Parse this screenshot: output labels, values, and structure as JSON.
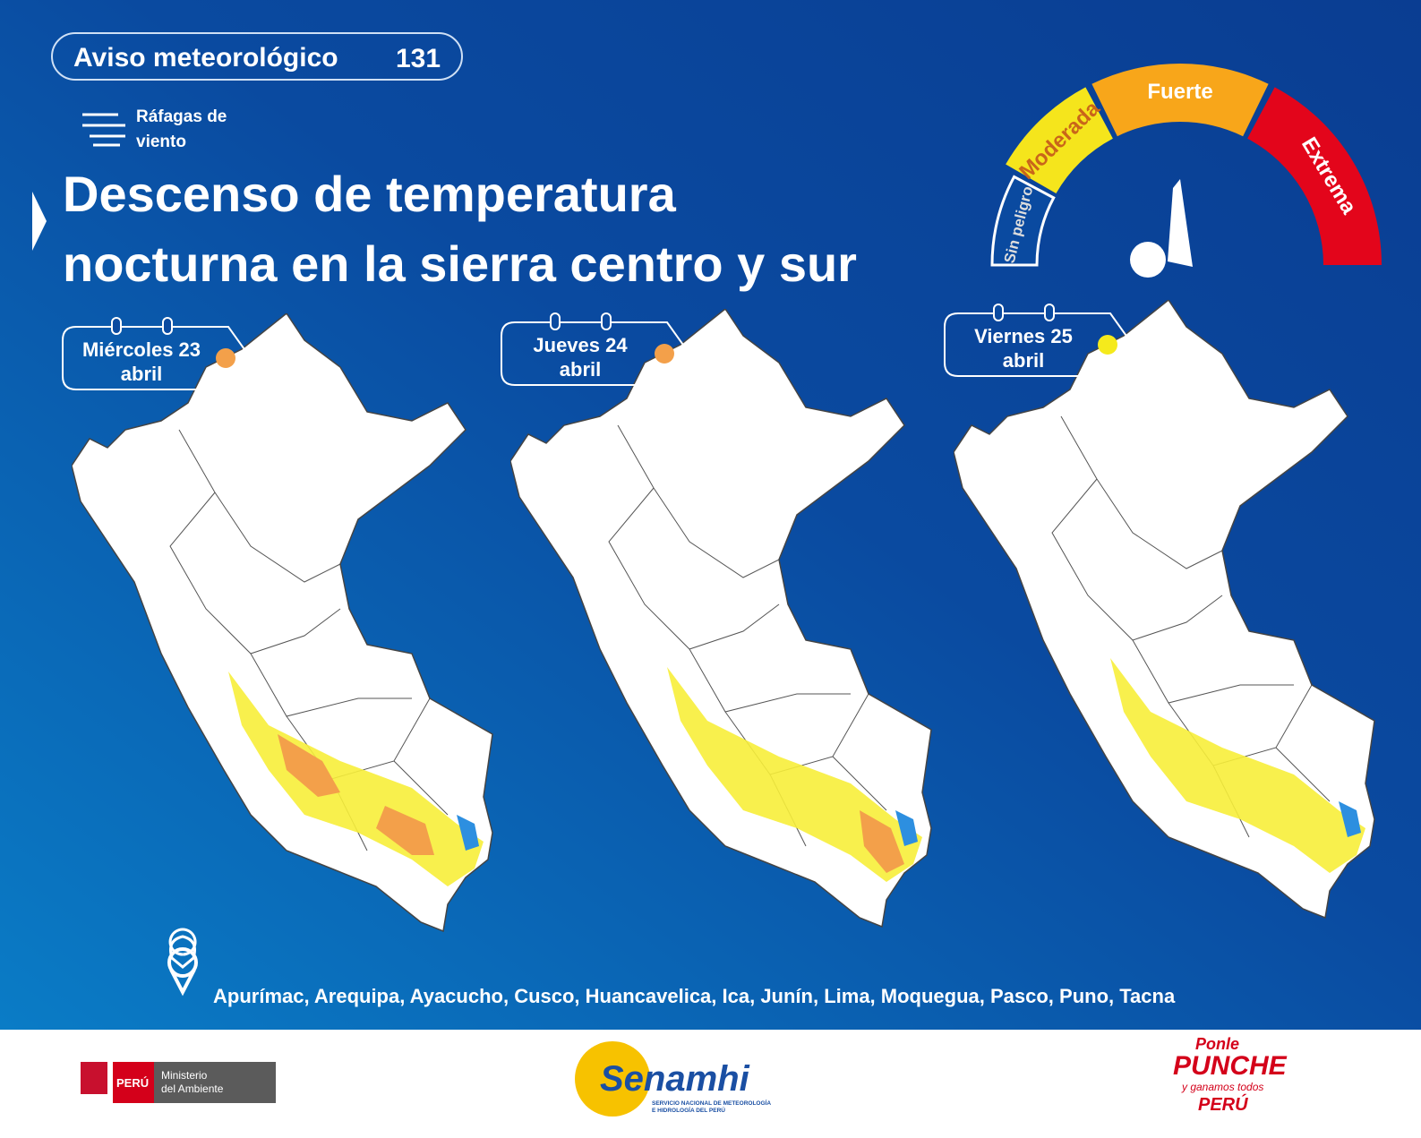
{
  "header": {
    "badge_label": "Aviso meteorológico",
    "badge_number": "131",
    "hazard_line1": "Ráfagas de",
    "hazard_line2": "viento",
    "title_line1": "Descenso de temperatura",
    "title_line2": "nocturna en la sierra centro y sur"
  },
  "gauge": {
    "levels": [
      "Sin peligro",
      "Moderada",
      "Fuerte",
      "Extrema"
    ]
  },
  "days": [
    {
      "date": "Miércoles 23",
      "month": "abril",
      "alert_color": "#f3a04a"
    },
    {
      "date": "Jueves 24",
      "month": "abril",
      "alert_color": "#f3a04a"
    },
    {
      "date": "Viernes 25",
      "month": "abril",
      "alert_color": "#f5ea1c"
    }
  ],
  "regions": "Apurímac, Arequipa, Ayacucho, Cusco, Huancavelica, Ica, Junín, Lima, Moquegua, Pasco, Puno, Tacna",
  "footer": {
    "peru": "PERÚ",
    "ministry_line1": "Ministerio",
    "ministry_line2": "del Ambiente",
    "senamhi": "Senamhi",
    "senamhi_line1": "SERVICIO NACIONAL DE METEOROLOGÍA",
    "senamhi_line2": "E HIDROLOGÍA DEL PERÚ",
    "campaign_line1": "Ponle",
    "campaign_line2": "PUNCHE",
    "campaign_line3": "y ganamos todos",
    "campaign_line4": "PERÚ"
  }
}
